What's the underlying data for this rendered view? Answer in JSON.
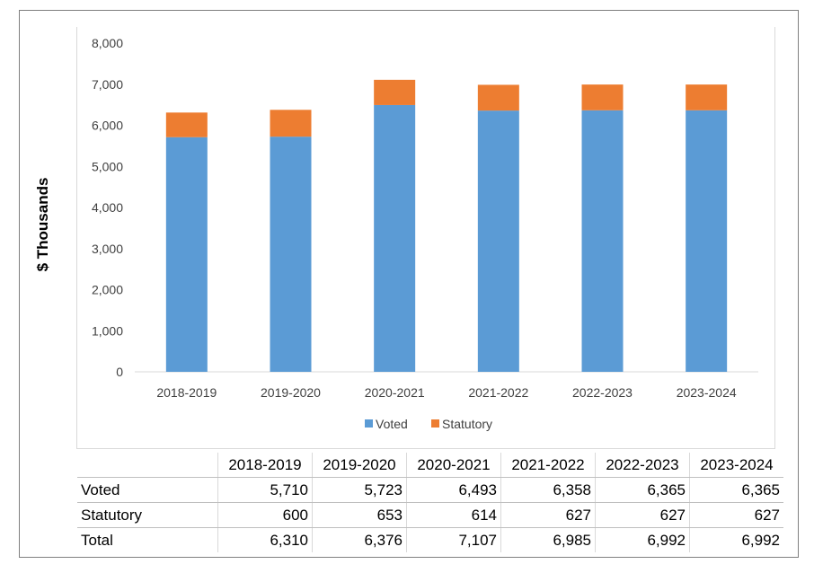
{
  "chart_data": {
    "type": "bar",
    "stacked": true,
    "categories": [
      "2018-2019",
      "2019-2020",
      "2020-2021",
      "2021-2022",
      "2022-2023",
      "2023-2024"
    ],
    "series": [
      {
        "name": "Voted",
        "color": "#5b9bd5",
        "values": [
          5710,
          5723,
          6493,
          6358,
          6365,
          6365
        ]
      },
      {
        "name": "Statutory",
        "color": "#ed7d31",
        "values": [
          600,
          653,
          614,
          627,
          627,
          627
        ]
      }
    ],
    "ylabel": "$ Thousands",
    "ylim": [
      0,
      8000
    ],
    "yticks": [
      0,
      1000,
      2000,
      3000,
      4000,
      5000,
      6000,
      7000,
      8000
    ],
    "ytick_labels": [
      "0",
      "1,000",
      "2,000",
      "3,000",
      "4,000",
      "5,000",
      "6,000",
      "7,000",
      "8,000"
    ],
    "legend_position": "bottom",
    "grid": false
  },
  "table": {
    "headers": [
      "2018-2019",
      "2019-2020",
      "2020-2021",
      "2021-2022",
      "2022-2023",
      "2023-2024"
    ],
    "rows": [
      {
        "label": "Voted",
        "values": [
          "5,710",
          "5,723",
          "6,493",
          "6,358",
          "6,365",
          "6,365"
        ]
      },
      {
        "label": "Statutory",
        "values": [
          "600",
          "653",
          "614",
          "627",
          "627",
          "627"
        ]
      },
      {
        "label": "Total",
        "values": [
          "6,310",
          "6,376",
          "7,107",
          "6,985",
          "6,992",
          "6,992"
        ]
      }
    ]
  }
}
